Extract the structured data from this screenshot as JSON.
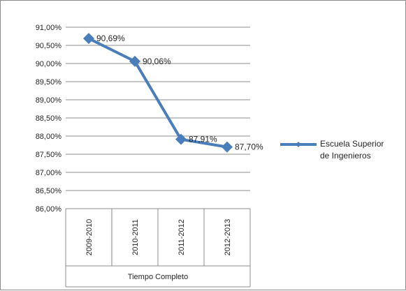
{
  "chart_data": {
    "type": "line",
    "categories": [
      "2009-2010",
      "2010-2011",
      "2011-2012",
      "2012-2013"
    ],
    "group_label": "Tiempo Completo",
    "series": [
      {
        "name": "Escuela Superior de Ingenieros",
        "legend_lines": [
          "Escuela Superior",
          "de Ingenieros"
        ],
        "values": [
          90.69,
          90.06,
          87.91,
          87.7
        ],
        "data_labels": [
          "90,69%",
          "90,06%",
          "87,91%",
          "87,70%"
        ],
        "color": "#4a7ebb",
        "marker": "diamond"
      }
    ],
    "ylim": [
      86.0,
      91.0
    ],
    "y_step": 0.5,
    "y_tick_labels": [
      "91,00%",
      "90,50%",
      "90,00%",
      "89,50%",
      "89,00%",
      "88,50%",
      "88,00%",
      "87,50%",
      "87,00%",
      "86,50%",
      "86,00%"
    ],
    "grid": true,
    "legend_position": "right",
    "gridline_color": "#8c8c8c"
  }
}
